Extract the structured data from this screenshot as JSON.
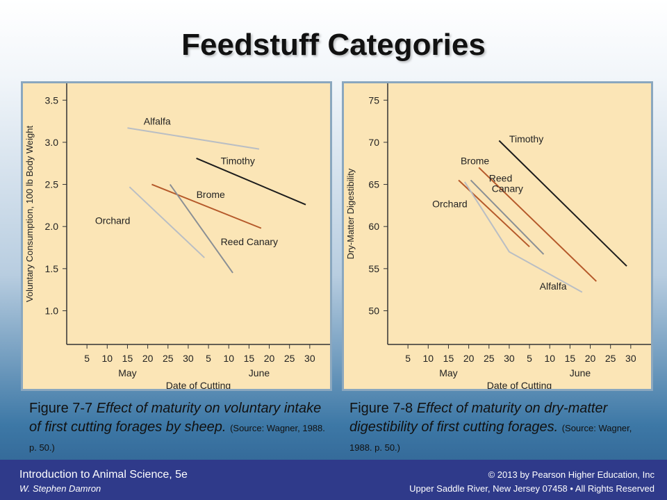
{
  "slide": {
    "title": "Feedstuff Categories"
  },
  "chart_data": [
    {
      "type": "line",
      "ylabel": "Voluntary Consumption, 100 lb Body Weight",
      "xlabel": "Date of Cutting",
      "yticks": [
        "1.0",
        "1.5",
        "2.0",
        "2.5",
        "3.0",
        "3.5"
      ],
      "ylim": [
        0.6,
        3.7
      ],
      "xticks": [
        "5",
        "10",
        "15",
        "20",
        "25",
        "30",
        "5",
        "10",
        "15",
        "20",
        "25",
        "30"
      ],
      "xmonths": [
        "May",
        "June"
      ],
      "xlim": [
        0,
        13
      ],
      "plot_bg": "#fbe5b6",
      "series": [
        {
          "name": "Alfalfa",
          "color": "#b9bec4",
          "points": [
            [
              3.0,
              3.17
            ],
            [
              9.5,
              2.92
            ]
          ],
          "label_at": [
            3.8,
            3.21
          ]
        },
        {
          "name": "Timothy",
          "color": "#1c1c1c",
          "points": [
            [
              6.4,
              2.81
            ],
            [
              11.8,
              2.26
            ]
          ],
          "label_at": [
            7.6,
            2.74
          ]
        },
        {
          "name": "Brome",
          "color": "#b5592a",
          "points": [
            [
              4.2,
              2.5
            ],
            [
              9.6,
              1.98
            ]
          ],
          "label_at": [
            6.4,
            2.34
          ]
        },
        {
          "name": "Orchard",
          "color": "#b9bec4",
          "points": [
            [
              3.1,
              2.47
            ],
            [
              6.8,
              1.63
            ]
          ],
          "label_at": [
            1.4,
            2.03
          ]
        },
        {
          "name": "Reed Canary",
          "color": "#8a8f94",
          "points": [
            [
              5.1,
              2.5
            ],
            [
              8.2,
              1.45
            ]
          ],
          "label_at": [
            7.6,
            1.78
          ]
        }
      ]
    },
    {
      "type": "line",
      "ylabel": "Dry-Matter Digestibility",
      "xlabel": "Date of Cutting",
      "yticks": [
        "50",
        "55",
        "60",
        "65",
        "70",
        "75"
      ],
      "ylim": [
        46,
        77
      ],
      "xticks": [
        "5",
        "10",
        "15",
        "20",
        "25",
        "30",
        "5",
        "10",
        "15",
        "20",
        "25",
        "30"
      ],
      "xmonths": [
        "May",
        "June"
      ],
      "xlim": [
        0,
        13
      ],
      "plot_bg": "#fbe5b6",
      "series": [
        {
          "name": "Timothy",
          "color": "#1c1c1c",
          "points": [
            [
              5.5,
              70.2
            ],
            [
              11.8,
              55.3
            ]
          ],
          "label_at": [
            6.0,
            70.0
          ]
        },
        {
          "name": "Brome",
          "color": "#b5592a",
          "points": [
            [
              3.5,
              65.5
            ],
            [
              7.0,
              57.6
            ]
          ],
          "label_at": [
            3.6,
            67.4
          ]
        },
        {
          "name": "Reed Canary",
          "color": "#b5592a",
          "points": [
            [
              4.5,
              67.0
            ],
            [
              10.3,
              53.5
            ]
          ],
          "label_at": [
            5.0,
            64.5
          ]
        },
        {
          "name": "",
          "color": "#8a8f94",
          "points": [
            [
              4.1,
              65.5
            ],
            [
              7.7,
              56.7
            ]
          ],
          "label_at": null
        },
        {
          "name": "Orchard",
          "color": "#b9bec4",
          "points": [
            [
              3.8,
              65.3
            ],
            [
              6.0,
              57.0
            ],
            [
              9.6,
              52.2
            ]
          ],
          "label_at": [
            2.2,
            62.3
          ]
        },
        {
          "name": "Alfalfa",
          "color": "#b9bec4",
          "points": [],
          "label_at": [
            7.5,
            52.5
          ]
        }
      ]
    }
  ],
  "captions": [
    {
      "figure": "Figure 7-7",
      "text": "Effect of maturity on voluntary intake of first cutting forages by sheep.",
      "source": "(Source: Wagner, 1988. p. 50.)"
    },
    {
      "figure": "Figure 7-8",
      "text": "Effect of maturity on dry-matter digestibility of first cutting forages.",
      "source": "(Source: Wagner, 1988. p. 50.)"
    }
  ],
  "footer": {
    "book": "Introduction to Animal Science, 5e",
    "author": "W. Stephen Damron",
    "copyright": "© 2013 by Pearson Higher Education, Inc",
    "address": "Upper Saddle River, New Jersey 07458 • All Rights Reserved"
  }
}
